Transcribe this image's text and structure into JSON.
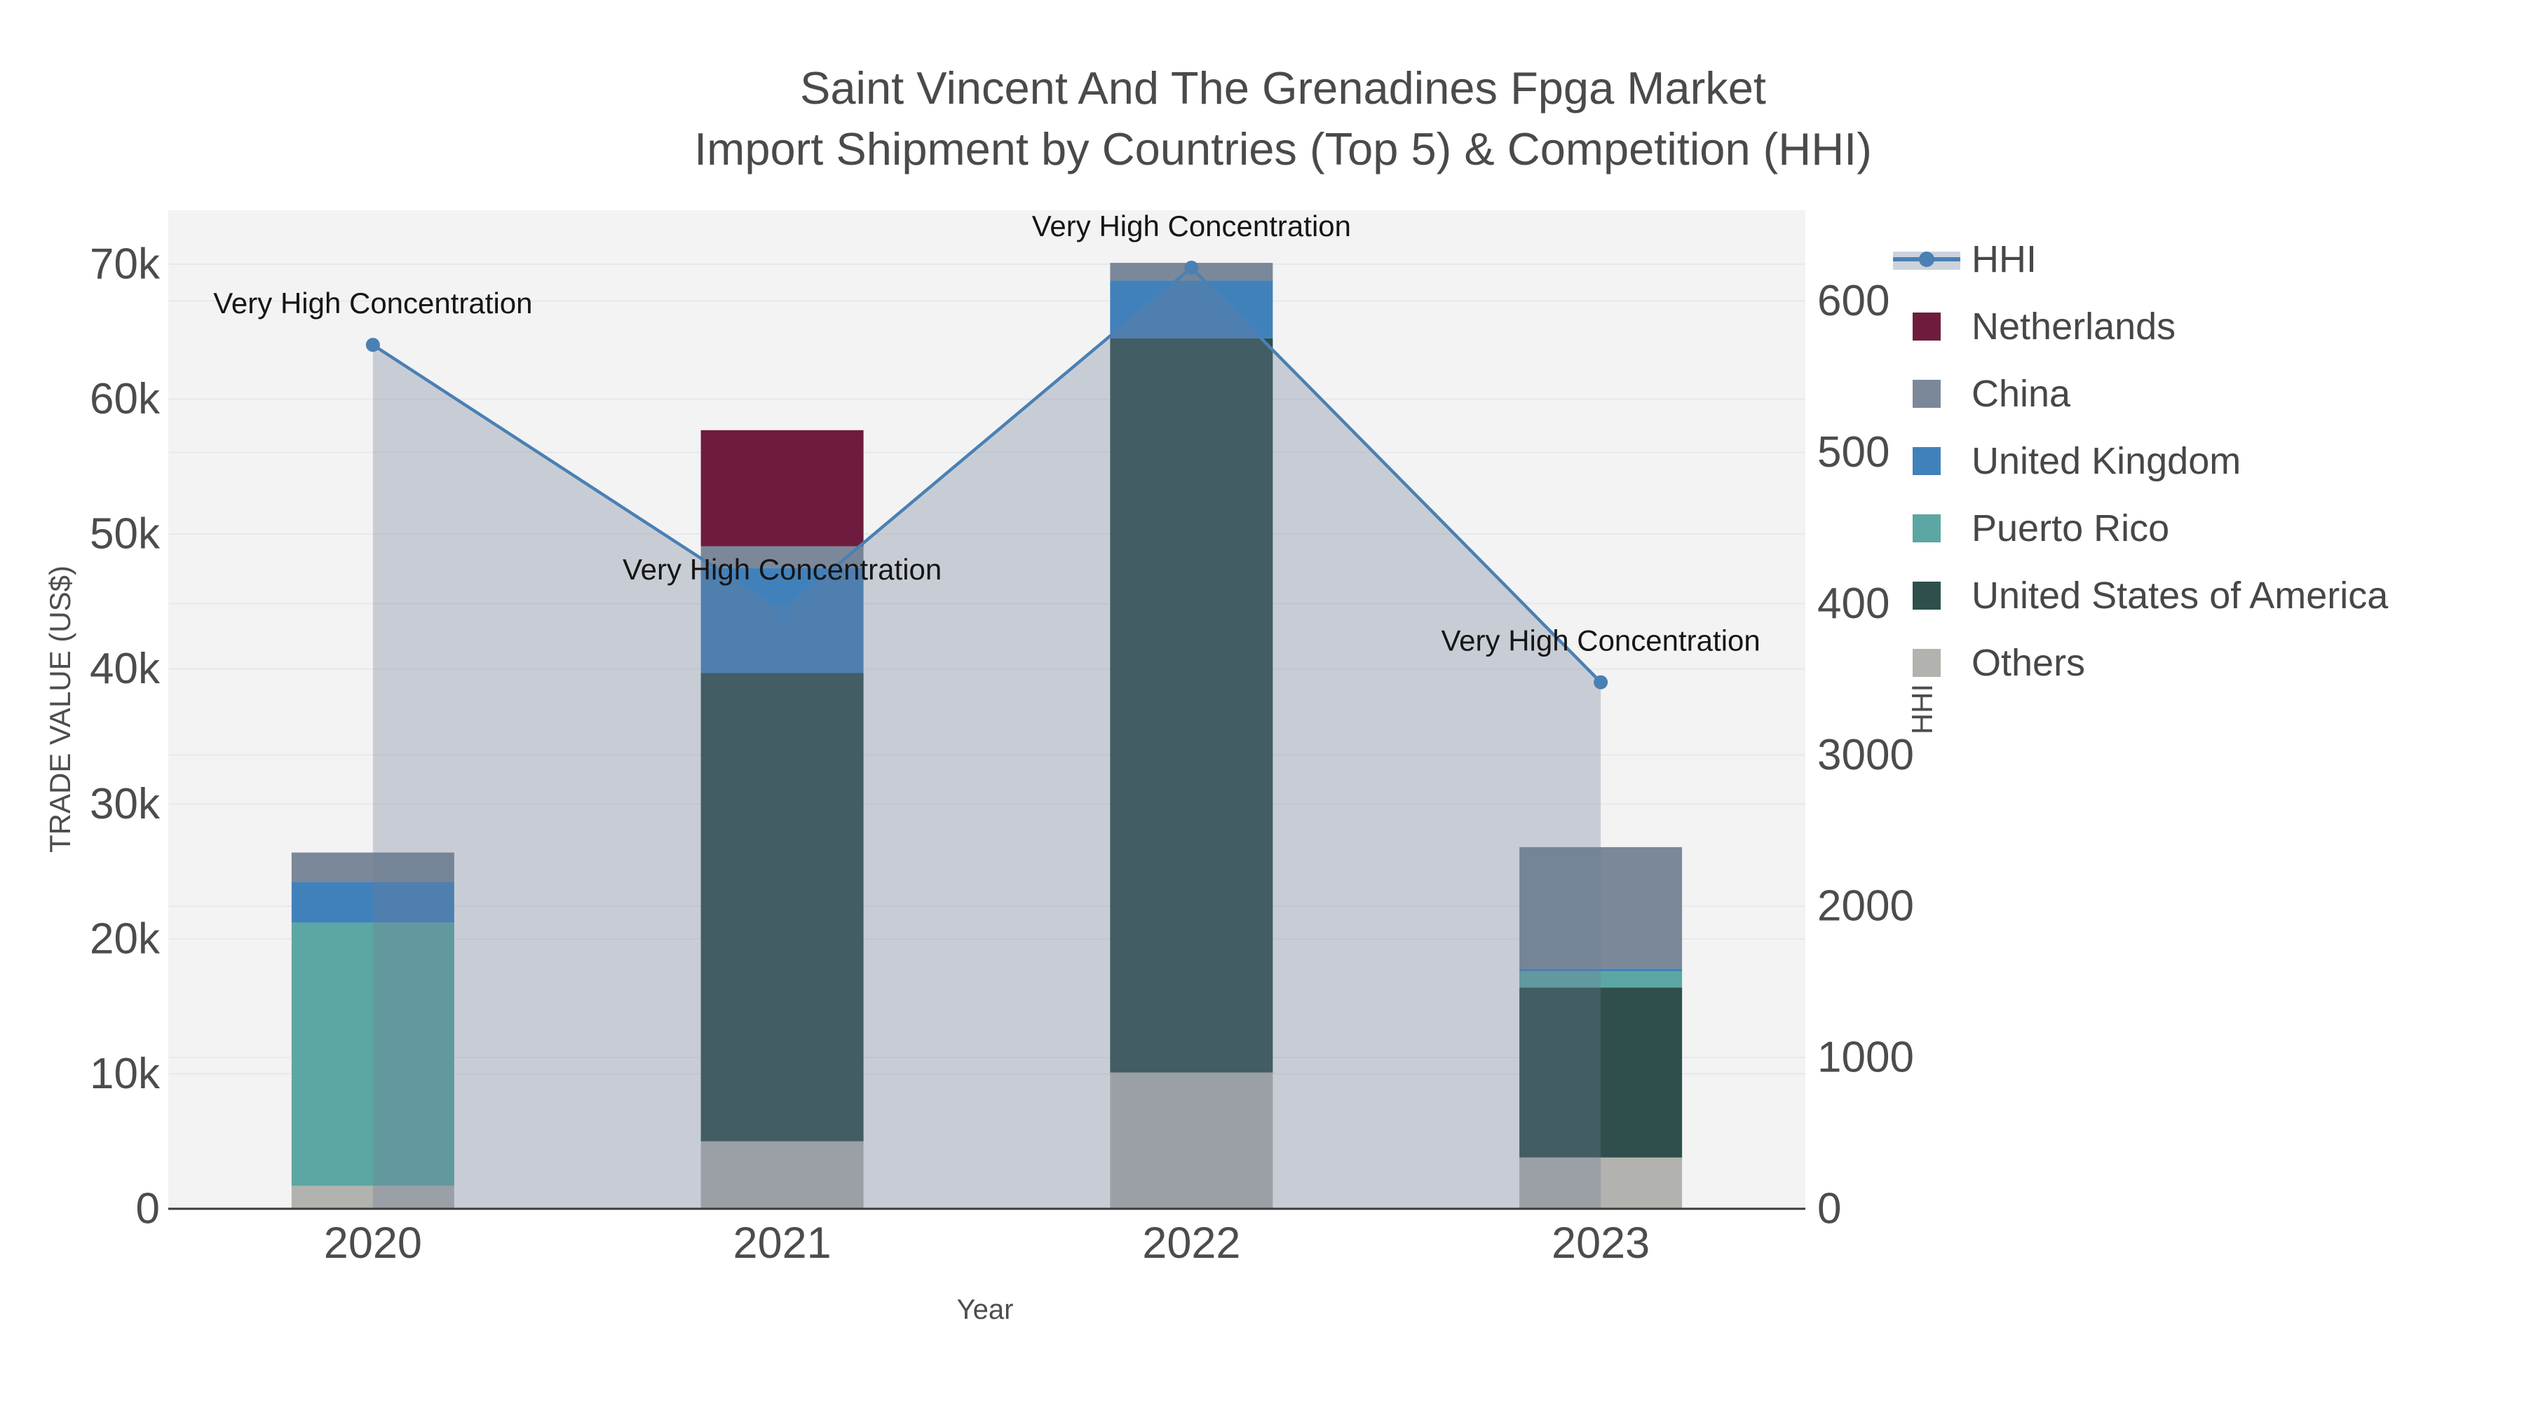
{
  "title": {
    "line1": "Saint Vincent And The Grenadines Fpga Market",
    "line2": "Import Shipment by Countries (Top 5) & Competition (HHI)"
  },
  "axes": {
    "x": {
      "title": "Year",
      "tick_labels": [
        "2020",
        "2021",
        "2022",
        "2023"
      ]
    },
    "y_left": {
      "title": "TRADE VALUE (US$)",
      "tick_labels": [
        "0",
        "10k",
        "20k",
        "30k",
        "40k",
        "50k",
        "60k",
        "70k"
      ],
      "range": [
        0,
        74000
      ]
    },
    "y_right": {
      "title": "HHI",
      "tick_labels": [
        "0",
        "1000",
        "2000",
        "3000",
        "4000",
        "5000",
        "6000"
      ],
      "range": [
        0,
        6600
      ]
    }
  },
  "legend": {
    "position": "right",
    "items": [
      {
        "label": "HHI",
        "swatch": "line-marker",
        "color": "#4a80b4"
      },
      {
        "label": "Netherlands",
        "swatch": "square",
        "color": "#6e1c3e"
      },
      {
        "label": "China",
        "swatch": "square",
        "color": "#7b8899"
      },
      {
        "label": "United Kingdom",
        "swatch": "square",
        "color": "#4181bb"
      },
      {
        "label": "Puerto Rico",
        "swatch": "square",
        "color": "#5ca7a3"
      },
      {
        "label": "United States of America",
        "swatch": "square",
        "color": "#2e4f4c"
      },
      {
        "label": "Others",
        "swatch": "square",
        "color": "#b2b2ae"
      }
    ]
  },
  "chart_data": {
    "type": "bar",
    "subtype": "stacked-bars-with-dual-axis-line",
    "title": "Saint Vincent And The Grenadines Fpga Market Import Shipment by Countries (Top 5) & Competition (HHI)",
    "xlabel": "Year",
    "ylabel_left": "TRADE VALUE (US$)",
    "ylabel_right": "HHI",
    "ylim_left": [
      0,
      74000
    ],
    "ylim_right": [
      0,
      6600
    ],
    "grid": true,
    "legend_position": "right",
    "categories": [
      "2020",
      "2021",
      "2022",
      "2023"
    ],
    "series": [
      {
        "name": "Others",
        "color": "#b2b2ae",
        "values": [
          1700,
          5000,
          10100,
          3800
        ]
      },
      {
        "name": "United States of America",
        "color": "#2e4f4c",
        "values": [
          0,
          34700,
          54400,
          12600
        ]
      },
      {
        "name": "Puerto Rico",
        "color": "#5ca7a3",
        "values": [
          19500,
          0,
          0,
          1200
        ]
      },
      {
        "name": "United Kingdom",
        "color": "#4181bb",
        "values": [
          3000,
          7800,
          4300,
          200
        ]
      },
      {
        "name": "China",
        "color": "#7b8899",
        "values": [
          2200,
          1600,
          1300,
          9000
        ]
      },
      {
        "name": "Netherlands",
        "color": "#6e1c3e",
        "values": [
          0,
          8600,
          0,
          0
        ]
      }
    ],
    "stack_totals": [
      26400,
      57700,
      70100,
      26800
    ],
    "line_series": {
      "name": "HHI",
      "axis": "right",
      "color": "#4a80b4",
      "area_fill": "rgba(108,124,148,0.32)",
      "values": [
        5710,
        3950,
        6220,
        3480
      ]
    },
    "annotations": [
      {
        "text": "Very High Concentration",
        "category": "2020"
      },
      {
        "text": "Very High Concentration",
        "category": "2021"
      },
      {
        "text": "Very High Concentration",
        "category": "2022"
      },
      {
        "text": "Very High Concentration",
        "category": "2023"
      }
    ]
  },
  "style": {
    "plot_bg": "#f3f3f4",
    "grid_color": "#e7e8ea",
    "axis_line_color": "#3b3b3b",
    "hhi_band_legend": "#ccd2dc",
    "page_bg": "#ffffff"
  }
}
